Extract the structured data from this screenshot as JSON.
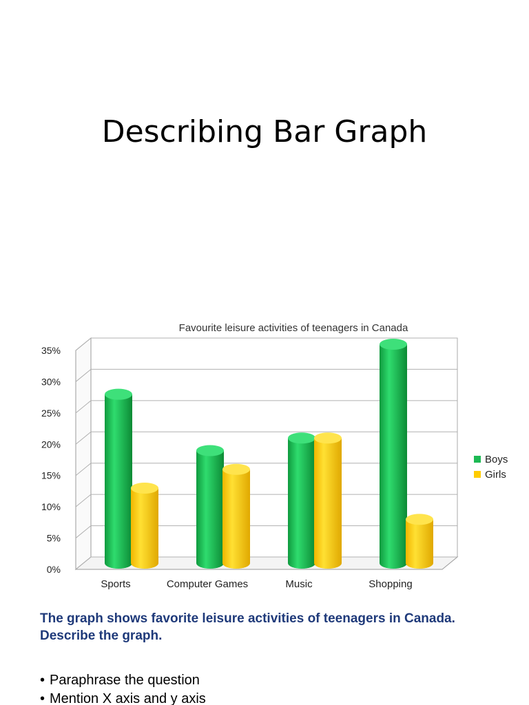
{
  "slide": {
    "title": "Describing Bar Graph",
    "prompt": "The graph shows favorite leisure activities of teenagers in Canada. Describe the graph.",
    "bullets": [
      "Paraphrase the question",
      "Mention X axis and y axis"
    ]
  },
  "chart_data": {
    "type": "bar",
    "title": "Favourite leisure activities of teenagers in Canada",
    "xlabel": "",
    "ylabel": "",
    "categories": [
      "Sports",
      "Computer Games",
      "Music",
      "Shopping"
    ],
    "series": [
      {
        "name": "Boys",
        "values": [
          27,
          18,
          20,
          35
        ],
        "color": "#1db954"
      },
      {
        "name": "Girls",
        "values": [
          12,
          15,
          20,
          7
        ],
        "color": "#ffcc00"
      }
    ],
    "ylim": [
      0,
      35
    ],
    "yticks": [
      "0%",
      "5%",
      "10%",
      "15%",
      "20%",
      "25%",
      "30%",
      "35%"
    ],
    "grid": true,
    "legend": "right",
    "style": "3d-cylinder"
  }
}
